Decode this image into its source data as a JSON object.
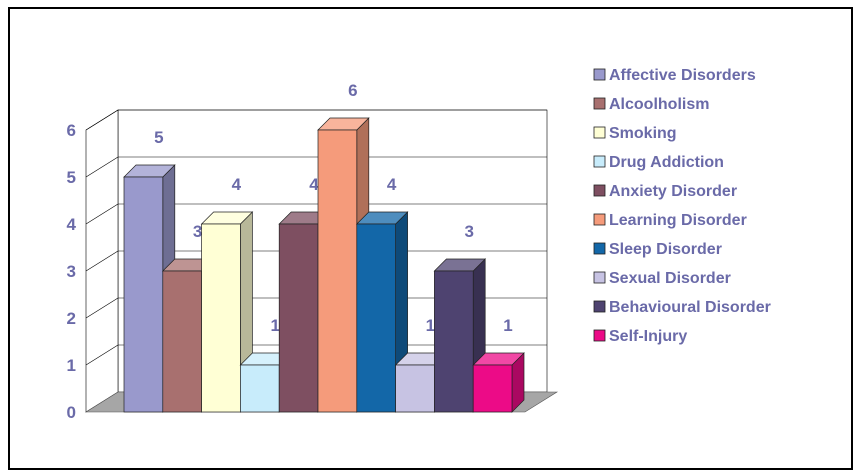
{
  "chart_data": {
    "type": "bar",
    "title": "",
    "xlabel": "",
    "ylabel": "",
    "ylim": [
      0,
      6
    ],
    "yticks": [
      "0",
      "1",
      "2",
      "3",
      "4",
      "5",
      "6"
    ],
    "grid": true,
    "legend_position": "right",
    "categories": [
      "Affective Disorders",
      "Alcoolholism",
      "Smoking",
      "Drug Addiction",
      "Anxiety Disorder",
      "Learning Disorder",
      "Sleep Disorder",
      "Sexual Disorder",
      "Behavioural Disorder",
      "Self-Injury"
    ],
    "values": [
      5,
      3,
      4,
      1,
      4,
      6,
      4,
      1,
      3,
      1
    ],
    "data_labels": [
      "5",
      "3",
      "4",
      "1",
      "4",
      "6",
      "4",
      "1",
      "3",
      "1"
    ],
    "colors": [
      "#9999cc",
      "#a8706f",
      "#ffffd5",
      "#c8ecfb",
      "#7e4f61",
      "#f59b7b",
      "#1367a8",
      "#c7c3e3",
      "#4e4370",
      "#ec0b87"
    ]
  },
  "style": {
    "label_color": "#6a6aa8",
    "wall_color": "#ffffff",
    "floor_color": "#a6a6a6",
    "grid_color": "#000000"
  }
}
